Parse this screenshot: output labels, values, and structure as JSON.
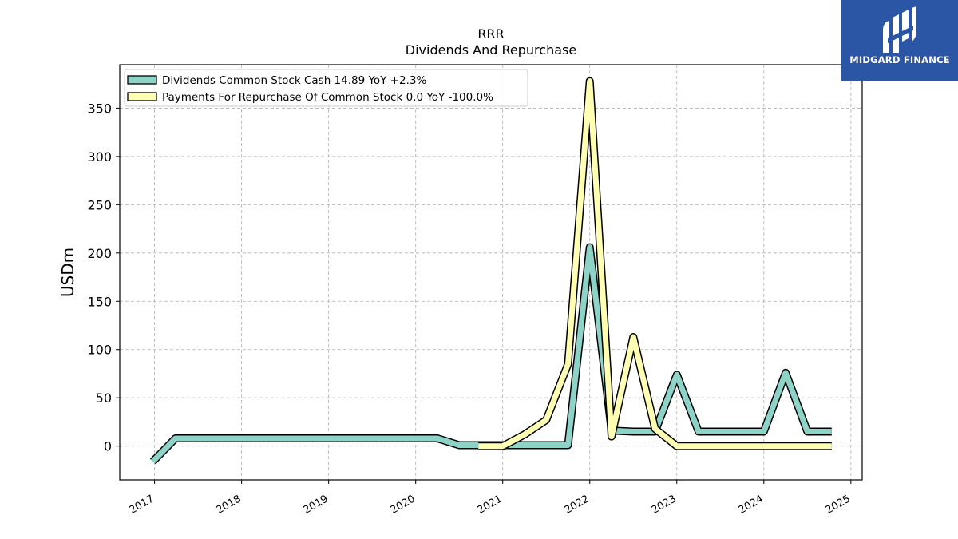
{
  "chart_data": {
    "type": "line",
    "title": "RRR",
    "subtitle": "Dividends And Repurchase",
    "ylabel": "USDm",
    "xlabel": "",
    "xlim": [
      2016.6,
      2025.13
    ],
    "ylim": [
      -35,
      395
    ],
    "y_ticks": [
      0,
      50,
      100,
      150,
      200,
      250,
      300,
      350
    ],
    "x_ticks": [
      "2017",
      "2018",
      "2019",
      "2020",
      "2021",
      "2022",
      "2023",
      "2024",
      "2025"
    ],
    "grid": true,
    "legend_position": "top-left",
    "series": [
      {
        "name": "Dividends Common Stock Cash  14.89 YoY +2.3%",
        "color": "#8dd3c7",
        "points": [
          [
            2016.98,
            -16
          ],
          [
            2017.24,
            8
          ],
          [
            2017.5,
            8
          ],
          [
            2017.75,
            8
          ],
          [
            2018.0,
            8
          ],
          [
            2018.25,
            8
          ],
          [
            2018.5,
            8
          ],
          [
            2018.75,
            8
          ],
          [
            2019.0,
            8
          ],
          [
            2019.25,
            8
          ],
          [
            2019.5,
            8
          ],
          [
            2019.75,
            8
          ],
          [
            2020.0,
            8
          ],
          [
            2020.25,
            8
          ],
          [
            2020.5,
            1
          ],
          [
            2020.75,
            1
          ],
          [
            2021.0,
            1
          ],
          [
            2021.25,
            1
          ],
          [
            2021.5,
            1
          ],
          [
            2021.75,
            1
          ],
          [
            2022.0,
            206
          ],
          [
            2022.25,
            16
          ],
          [
            2022.5,
            15
          ],
          [
            2022.75,
            15
          ],
          [
            2023.0,
            74
          ],
          [
            2023.25,
            15
          ],
          [
            2023.5,
            15
          ],
          [
            2023.75,
            15
          ],
          [
            2024.0,
            15
          ],
          [
            2024.25,
            76
          ],
          [
            2024.5,
            15
          ],
          [
            2024.78,
            15
          ]
        ]
      },
      {
        "name": "Payments For Repurchase Of Common Stock  0.0 YoY -100.0%",
        "color": "#ffffb3",
        "points": [
          [
            2020.72,
            0
          ],
          [
            2021.0,
            0
          ],
          [
            2021.25,
            12
          ],
          [
            2021.5,
            27
          ],
          [
            2021.75,
            85
          ],
          [
            2022.0,
            378
          ],
          [
            2022.25,
            10
          ],
          [
            2022.5,
            113
          ],
          [
            2022.75,
            18
          ],
          [
            2023.0,
            0
          ],
          [
            2023.25,
            0
          ],
          [
            2023.5,
            0
          ],
          [
            2023.75,
            0
          ],
          [
            2024.0,
            0
          ],
          [
            2024.25,
            0
          ],
          [
            2024.5,
            0
          ],
          [
            2024.78,
            0
          ]
        ]
      }
    ]
  },
  "logo": {
    "text": "MIDGARD FINANCE",
    "background": "#2b55a5"
  }
}
